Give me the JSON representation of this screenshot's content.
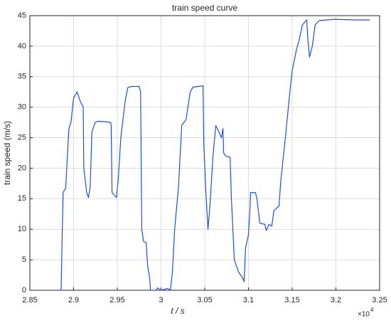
{
  "chart_data": {
    "type": "line",
    "title": "train speed curve",
    "x_label": "t / s",
    "y_label": "train speed (m/s)",
    "x_multiplier": {
      "base": "×10",
      "exponent": "4"
    },
    "color": "#1f4fd8",
    "grid": true,
    "xlim": [
      2.85,
      3.25
    ],
    "xticks": [
      2.85,
      2.9,
      2.95,
      3,
      3.05,
      3.1,
      3.15,
      3.2,
      3.25
    ],
    "ylim": [
      0,
      45
    ],
    "yticks": [
      0,
      5,
      10,
      15,
      20,
      25,
      30,
      35,
      40,
      45
    ],
    "x": [
      2.881,
      2.8857,
      2.888,
      2.891,
      2.8946,
      2.897,
      2.9,
      2.904,
      2.9076,
      2.911,
      2.9117,
      2.915,
      2.917,
      2.919,
      2.921,
      2.9247,
      2.928,
      2.937,
      2.9425,
      2.943,
      2.944,
      2.949,
      2.951,
      2.954,
      2.959,
      2.962,
      2.966,
      2.975,
      2.9766,
      2.978,
      2.98,
      2.983,
      2.9847,
      2.987,
      2.988,
      2.9945,
      2.996,
      3.0,
      3.0075,
      3.0107,
      3.013,
      3.0156,
      3.02,
      3.0237,
      3.0286,
      3.0334,
      3.0367,
      3.048,
      3.0489,
      3.0513,
      3.0537,
      3.056,
      3.0594,
      3.0626,
      3.066,
      3.069,
      3.0708,
      3.0716,
      3.074,
      3.079,
      3.0805,
      3.0838,
      3.0886,
      3.0935,
      3.095,
      3.0967,
      3.0999,
      3.1016,
      3.1024,
      3.108,
      3.1097,
      3.113,
      3.1187,
      3.1203,
      3.1235,
      3.1267,
      3.129,
      3.1325,
      3.1349,
      3.137,
      3.1422,
      3.147,
      3.15,
      3.155,
      3.158,
      3.1617,
      3.1666,
      3.168,
      3.1698,
      3.173,
      3.1763,
      3.181,
      3.1982,
      3.222,
      3.2388
    ],
    "values": [
      0,
      0,
      16,
      16.8,
      26.5,
      27.5,
      31.5,
      32.5,
      31,
      30,
      20,
      16,
      15.2,
      17,
      26,
      27.5,
      27.7,
      27.6,
      27.5,
      27,
      16,
      15.2,
      18,
      25,
      31,
      33.2,
      33.4,
      33.4,
      32.5,
      10,
      8,
      7.8,
      4,
      2,
      0,
      0,
      0.4,
      0,
      0.3,
      0,
      3,
      10,
      17,
      27,
      28,
      32.5,
      33.3,
      33.5,
      24,
      16,
      10,
      14,
      22,
      27,
      26,
      25,
      26.5,
      22.5,
      22,
      21.8,
      15,
      5,
      3,
      2,
      1.4,
      7,
      9,
      13,
      16,
      16,
      15,
      11,
      10.8,
      9.8,
      10.8,
      10.5,
      13,
      13.5,
      13.8,
      18,
      25,
      32,
      36,
      39.5,
      41,
      43.5,
      44.3,
      41,
      38.2,
      40,
      43.5,
      44.2,
      44.4,
      44.3,
      44.3
    ]
  }
}
